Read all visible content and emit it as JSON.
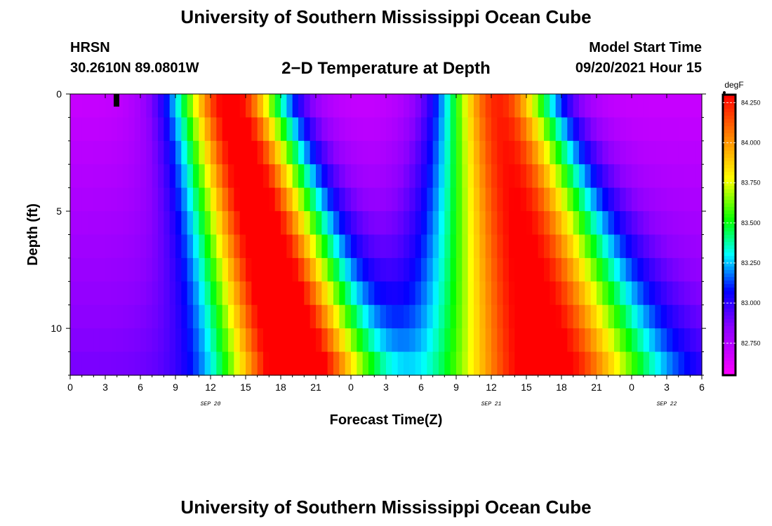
{
  "header": {
    "title": "University of Southern Mississippi Ocean Cube",
    "station": "HRSN",
    "coords": "30.2610N  89.0801W",
    "chart_title": "2−D Temperature at Depth",
    "model_start_label": "Model Start Time",
    "model_start_value": "09/20/2021 Hour 15"
  },
  "footer": {
    "title": "University of Southern Mississippi Ocean Cube"
  },
  "chart_data": {
    "type": "heatmap",
    "title": "2−D Temperature at Depth",
    "xlabel": "Forecast Time(Z)",
    "ylabel": "Depth (ft)",
    "x_ticks": [
      "0",
      "3",
      "6",
      "9",
      "12",
      "15",
      "18",
      "21",
      "0",
      "3",
      "6",
      "9",
      "12",
      "15",
      "18",
      "21",
      "0",
      "3",
      "6"
    ],
    "date_labels": [
      {
        "text": "SEP 20",
        "hour": 12
      },
      {
        "text": "SEP 21",
        "hour": 36
      },
      {
        "text": "SEP 22",
        "hour": 51
      }
    ],
    "xlim_hours": [
      0,
      54
    ],
    "y_ticks": [
      0,
      5,
      10
    ],
    "ylim": [
      0,
      12
    ],
    "depth_levels": 12,
    "colorbar": {
      "unit": "degF",
      "labels": [
        "84.250",
        "84.000",
        "83.750",
        "83.500",
        "83.250",
        "83.000",
        "82.750"
      ],
      "range": [
        82.55,
        84.3
      ]
    }
  },
  "colors": {
    "scale_low": "#ff00ff",
    "scale_high": "#ff0000",
    "frame": "#000000"
  }
}
